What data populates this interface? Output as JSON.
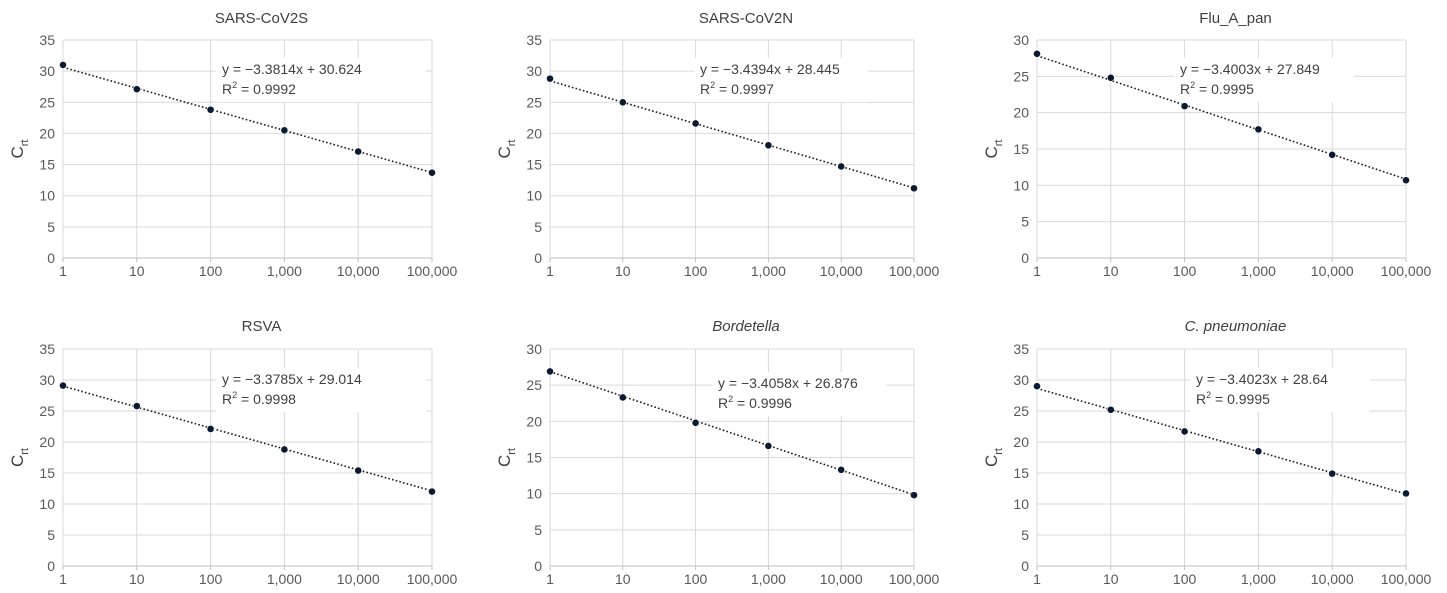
{
  "chart_data": [
    {
      "type": "scatter",
      "title": "SARS-CoV2S",
      "title_italic": false,
      "ylabel": "C",
      "ylabel_sub": "rt",
      "xscale": "log",
      "xlim": [
        1,
        100000
      ],
      "ylim": [
        0,
        35
      ],
      "ytick_values": [
        0,
        5,
        10,
        15,
        20,
        25,
        30,
        35
      ],
      "x": [
        1,
        10,
        100,
        1000,
        10000,
        100000
      ],
      "xtick_labels": [
        "1",
        "10",
        "100",
        "1,000",
        "10,000",
        "100,000"
      ],
      "y": [
        31.0,
        27.1,
        23.8,
        20.5,
        17.1,
        13.7
      ],
      "trendline": {
        "slope": -3.3814,
        "intercept": 30.624,
        "style": "dotted"
      },
      "equation": "y = −3.3814x + 30.624",
      "r2_label": "R",
      "r2_sup": "2",
      "r2_value": " = 0.9992",
      "grid": true,
      "marker_color": "#0b1a33"
    },
    {
      "type": "scatter",
      "title": "SARS-CoV2N",
      "title_italic": false,
      "ylabel": "C",
      "ylabel_sub": "rt",
      "xscale": "log",
      "xlim": [
        1,
        100000
      ],
      "ylim": [
        0,
        35
      ],
      "ytick_values": [
        0,
        5,
        10,
        15,
        20,
        25,
        30,
        35
      ],
      "x": [
        1,
        10,
        100,
        1000,
        10000,
        100000
      ],
      "xtick_labels": [
        "1",
        "10",
        "100",
        "1,000",
        "10,000",
        "100,000"
      ],
      "y": [
        28.8,
        25.0,
        21.6,
        18.1,
        14.7,
        11.2
      ],
      "trendline": {
        "slope": -3.4394,
        "intercept": 28.445,
        "style": "dotted"
      },
      "equation": "y = −3.4394x + 28.445",
      "r2_label": "R",
      "r2_sup": "2",
      "r2_value": " = 0.9997",
      "grid": true,
      "marker_color": "#0b1a33"
    },
    {
      "type": "scatter",
      "title": "Flu_A_pan",
      "title_italic": false,
      "ylabel": "C",
      "ylabel_sub": "rt",
      "xscale": "log",
      "xlim": [
        1,
        100000
      ],
      "ylim": [
        0,
        30
      ],
      "ytick_values": [
        0,
        5,
        10,
        15,
        20,
        25,
        30
      ],
      "x": [
        1,
        10,
        100,
        1000,
        10000,
        100000
      ],
      "xtick_labels": [
        "1",
        "10",
        "100",
        "1,000",
        "10,000",
        "100,000"
      ],
      "y": [
        28.1,
        24.8,
        20.9,
        17.7,
        14.2,
        10.7
      ],
      "trendline": {
        "slope": -3.4003,
        "intercept": 27.849,
        "style": "dotted"
      },
      "equation": "y = −3.4003x + 27.849",
      "r2_label": "R",
      "r2_sup": "2",
      "r2_value": " = 0.9995",
      "grid": true,
      "marker_color": "#0b1a33"
    },
    {
      "type": "scatter",
      "title": "RSVA",
      "title_italic": false,
      "ylabel": "C",
      "ylabel_sub": "rt",
      "xscale": "log",
      "xlim": [
        1,
        100000
      ],
      "ylim": [
        0,
        35
      ],
      "ytick_values": [
        0,
        5,
        10,
        15,
        20,
        25,
        30,
        35
      ],
      "x": [
        1,
        10,
        100,
        1000,
        10000,
        100000
      ],
      "xtick_labels": [
        "1",
        "10",
        "100",
        "1,000",
        "10,000",
        "100,000"
      ],
      "y": [
        29.1,
        25.8,
        22.1,
        18.8,
        15.4,
        12.0
      ],
      "trendline": {
        "slope": -3.3785,
        "intercept": 29.014,
        "style": "dotted"
      },
      "equation": "y = −3.3785x + 29.014",
      "r2_label": "R",
      "r2_sup": "2",
      "r2_value": " = 0.9998",
      "grid": true,
      "marker_color": "#0b1a33"
    },
    {
      "type": "scatter",
      "title": "Bordetella",
      "title_italic": true,
      "ylabel": "C",
      "ylabel_sub": "rt",
      "xscale": "log",
      "xlim": [
        1,
        100000
      ],
      "ylim": [
        0,
        30
      ],
      "ytick_values": [
        0,
        5,
        10,
        15,
        20,
        25,
        30
      ],
      "x": [
        1,
        10,
        100,
        1000,
        10000,
        100000
      ],
      "xtick_labels": [
        "1",
        "10",
        "100",
        "1,000",
        "10,000",
        "100,000"
      ],
      "y": [
        26.9,
        23.3,
        19.8,
        16.6,
        13.3,
        9.8
      ],
      "trendline": {
        "slope": -3.4058,
        "intercept": 26.876,
        "style": "dotted"
      },
      "equation": "y = −3.4058x + 26.876",
      "r2_label": "R",
      "r2_sup": "2",
      "r2_value": " = 0.9996",
      "grid": true,
      "marker_color": "#0b1a33"
    },
    {
      "type": "scatter",
      "title": "C. pneumoniae",
      "title_italic": true,
      "ylabel": "C",
      "ylabel_sub": "rt",
      "xscale": "log",
      "xlim": [
        1,
        100000
      ],
      "ylim": [
        0,
        35
      ],
      "ytick_values": [
        0,
        5,
        10,
        15,
        20,
        25,
        30,
        35
      ],
      "x": [
        1,
        10,
        100,
        1000,
        10000,
        100000
      ],
      "xtick_labels": [
        "1",
        "10",
        "100",
        "1,000",
        "10,000",
        "100,000"
      ],
      "y": [
        29.0,
        25.2,
        21.7,
        18.5,
        14.9,
        11.7
      ],
      "trendline": {
        "slope": -3.4023,
        "intercept": 28.64,
        "style": "dotted"
      },
      "equation": "y = −3.4023x + 28.64",
      "r2_label": "R",
      "r2_sup": "2",
      "r2_value": " = 0.9995",
      "grid": true,
      "marker_color": "#0b1a33"
    }
  ]
}
